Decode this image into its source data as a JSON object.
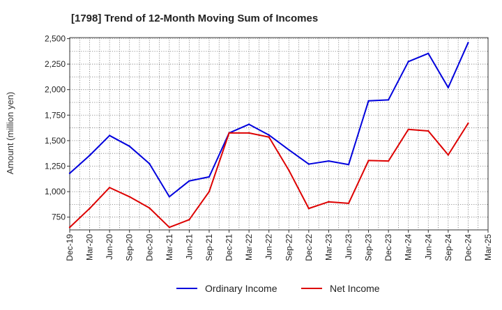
{
  "chart_data": {
    "type": "line",
    "title": "[1798]  Trend of 12-Month Moving Sum of Incomes",
    "xlabel": "",
    "ylabel": "Amount (million yen)",
    "ylim": [
      625,
      2510
    ],
    "yticks": [
      750,
      1000,
      1250,
      1500,
      1750,
      2000,
      2250,
      2500
    ],
    "ytick_labels": [
      "750",
      "1,000",
      "1,250",
      "1,500",
      "1,750",
      "2,000",
      "2,250",
      "2,500"
    ],
    "categories": [
      "Dec-19",
      "Mar-20",
      "Jun-20",
      "Sep-20",
      "Dec-20",
      "Mar-21",
      "Jun-21",
      "Sep-21",
      "Dec-21",
      "Mar-22",
      "Jun-22",
      "Sep-22",
      "Dec-22",
      "Mar-23",
      "Jun-23",
      "Sep-23",
      "Dec-23",
      "Mar-24",
      "Jun-24",
      "Sep-24",
      "Dec-24",
      "Mar-25"
    ],
    "grid": true,
    "legend_position": "bottom-center",
    "series": [
      {
        "name": "Ordinary Income",
        "color": "#0000dd",
        "values": [
          1180,
          1355,
          1550,
          1445,
          1275,
          950,
          1105,
          1145,
          1575,
          1660,
          1555,
          1410,
          1270,
          1300,
          1265,
          1890,
          1900,
          2275,
          2355,
          2020,
          2460,
          null
        ]
      },
      {
        "name": "Net Income",
        "color": "#dd0000",
        "values": [
          650,
          835,
          1040,
          950,
          840,
          650,
          725,
          1000,
          1575,
          1575,
          1535,
          1210,
          835,
          900,
          885,
          1305,
          1300,
          1610,
          1595,
          1360,
          1670,
          null
        ]
      }
    ]
  }
}
